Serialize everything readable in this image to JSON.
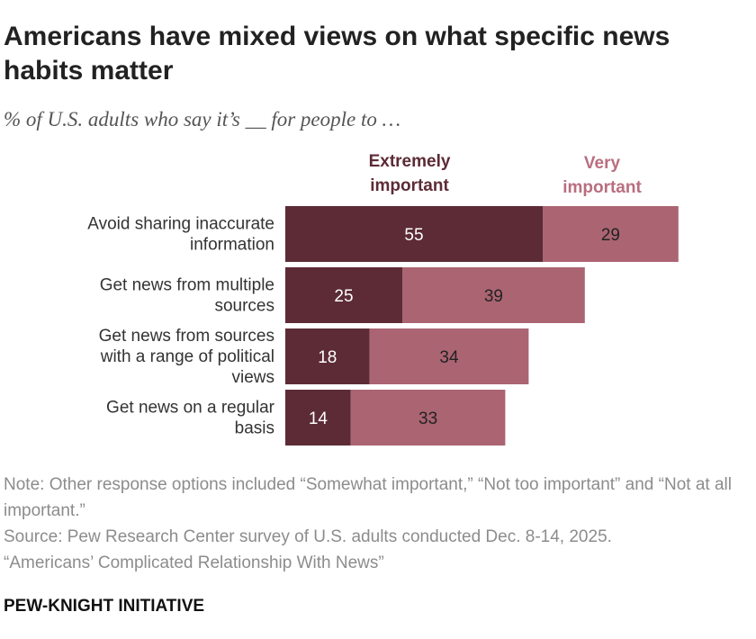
{
  "header": {
    "title": "Americans have mixed views on what specific news habits matter",
    "subtitle": "% of U.S. adults who say it’s __ for people to …"
  },
  "legend": {
    "extreme": "Extremely important",
    "very": "Very important"
  },
  "colors": {
    "extreme": "#5c2b36",
    "very": "#ab6472",
    "label_text": "#333333"
  },
  "notes": {
    "note": "Note: Other response options included “Somewhat important,” “Not too important” and “Not at all important.”",
    "source": "Source: Pew Research Center survey of U.S. adults conducted Dec. 8-14, 2025.",
    "report": "“Americans’ Complicated Relationship With News”"
  },
  "footer": {
    "brand": "PEW-KNIGHT INITIATIVE"
  },
  "chart_data": {
    "type": "bar",
    "orientation": "horizontal",
    "stacked": true,
    "title": "Americans have mixed views on what specific news habits matter",
    "subtitle": "% of U.S. adults who say it’s __ for people to …",
    "categories": [
      [
        "Avoid sharing inaccurate",
        "information"
      ],
      [
        "Get news from multiple",
        "sources"
      ],
      [
        "Get news from sources",
        "with a range of political",
        "views"
      ],
      [
        "Get news on a regular",
        "basis"
      ]
    ],
    "series": [
      {
        "name": "Extremely important",
        "values": [
          55,
          25,
          18,
          14
        ]
      },
      {
        "name": "Very important",
        "values": [
          29,
          39,
          34,
          33
        ]
      }
    ],
    "xlim": [
      0,
      100
    ],
    "grid": false,
    "legend_position": "top"
  }
}
